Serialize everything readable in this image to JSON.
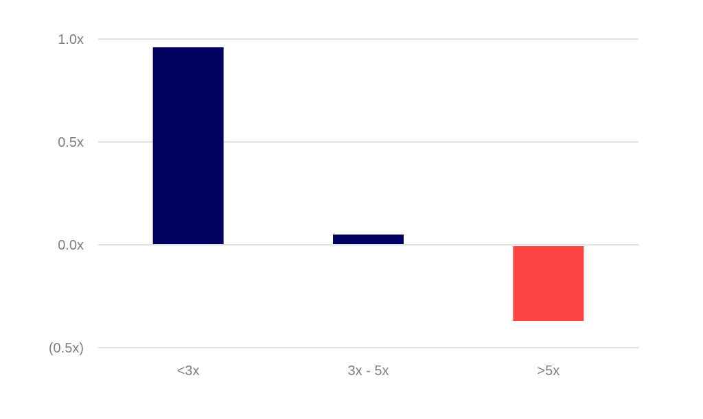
{
  "chart_data": {
    "type": "bar",
    "categories": [
      "<3x",
      "3x - 5x",
      ">5x"
    ],
    "values": [
      0.96,
      0.05,
      -0.37
    ],
    "y_ticks": [
      {
        "value": 1.0,
        "label": "1.0x"
      },
      {
        "value": 0.5,
        "label": "0.5x"
      },
      {
        "value": 0.0,
        "label": "0.0x"
      },
      {
        "value": -0.5,
        "label": "(0.5x)"
      }
    ],
    "ylim": [
      -0.5,
      1.0
    ],
    "grid": true,
    "colors": {
      "positive": "#000060",
      "negative": "#ff4444",
      "grid": "#d9d9d9",
      "text": "#7f7f7f"
    }
  }
}
